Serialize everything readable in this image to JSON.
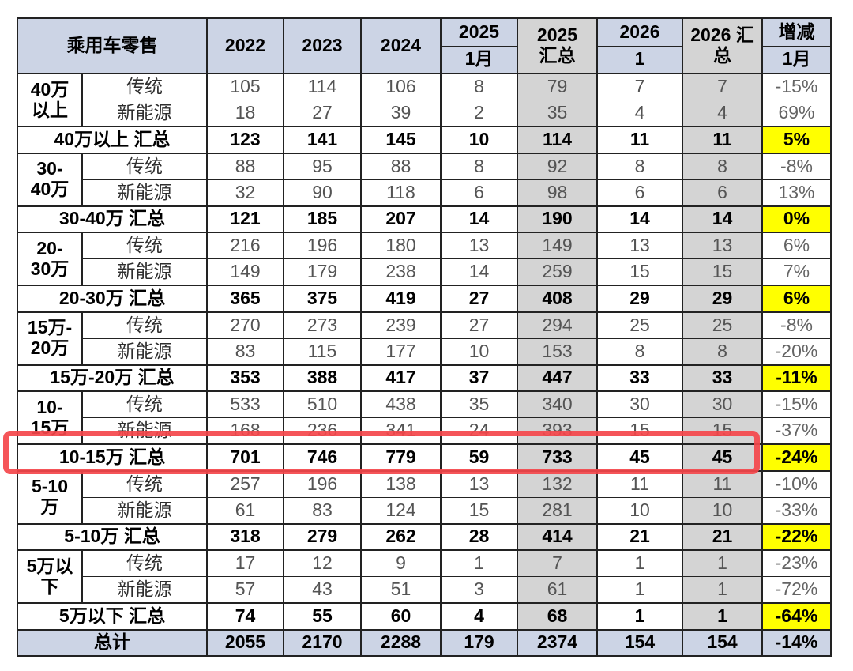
{
  "chart_data": {
    "type": "table",
    "title": "乘用车零售",
    "column_headers": [
      "2022",
      "2023",
      "2024",
      "2025 1月",
      "2025 汇总",
      "2026 1",
      "2026 汇总",
      "增减 1月"
    ],
    "groups": [
      {
        "segment": "40万以上",
        "segment_display": "40万\n以上",
        "rows": [
          {
            "category": "传统",
            "values": [
              105,
              114,
              106,
              8,
              79,
              7,
              7,
              "-15%"
            ]
          },
          {
            "category": "新能源",
            "values": [
              18,
              27,
              39,
              2,
              35,
              4,
              4,
              "69%"
            ]
          }
        ],
        "summary": {
          "label": "40万以上 汇总",
          "values": [
            123,
            141,
            145,
            10,
            114,
            11,
            11,
            "5%"
          ]
        }
      },
      {
        "segment": "30-40万",
        "segment_display": "30-\n40万",
        "rows": [
          {
            "category": "传统",
            "values": [
              88,
              95,
              88,
              8,
              92,
              8,
              8,
              "-8%"
            ]
          },
          {
            "category": "新能源",
            "values": [
              32,
              90,
              118,
              6,
              98,
              6,
              6,
              "13%"
            ]
          }
        ],
        "summary": {
          "label": "30-40万 汇总",
          "values": [
            121,
            185,
            207,
            14,
            190,
            14,
            14,
            "0%"
          ]
        }
      },
      {
        "segment": "20-30万",
        "segment_display": "20-\n30万",
        "rows": [
          {
            "category": "传统",
            "values": [
              216,
              196,
              180,
              13,
              149,
              13,
              13,
              "6%"
            ]
          },
          {
            "category": "新能源",
            "values": [
              149,
              179,
              238,
              14,
              259,
              15,
              15,
              "7%"
            ]
          }
        ],
        "summary": {
          "label": "20-30万 汇总",
          "values": [
            365,
            375,
            419,
            27,
            408,
            29,
            29,
            "6%"
          ]
        }
      },
      {
        "segment": "15万-20万",
        "segment_display": "15万-\n20万",
        "rows": [
          {
            "category": "传统",
            "values": [
              270,
              273,
              239,
              27,
              294,
              25,
              25,
              "-8%"
            ]
          },
          {
            "category": "新能源",
            "values": [
              83,
              115,
              177,
              10,
              153,
              8,
              8,
              "-20%"
            ]
          }
        ],
        "summary": {
          "label": "15万-20万 汇总",
          "values": [
            353,
            388,
            417,
            37,
            447,
            33,
            33,
            "-11%"
          ]
        }
      },
      {
        "segment": "10-15万",
        "segment_display": "10-\n15万",
        "rows": [
          {
            "category": "传统",
            "values": [
              533,
              510,
              438,
              35,
              340,
              30,
              30,
              "-15%"
            ]
          },
          {
            "category": "新能源",
            "values": [
              168,
              236,
              341,
              24,
              393,
              15,
              15,
              "-37%"
            ]
          }
        ],
        "summary": {
          "label": "10-15万 汇总",
          "values": [
            701,
            746,
            779,
            59,
            733,
            45,
            45,
            "-24%"
          ]
        }
      },
      {
        "segment": "5-10万",
        "segment_display": "5-10\n万",
        "rows": [
          {
            "category": "传统",
            "values": [
              257,
              196,
              138,
              13,
              132,
              11,
              11,
              "-10%"
            ]
          },
          {
            "category": "新能源",
            "values": [
              61,
              83,
              124,
              15,
              281,
              10,
              10,
              "-33%"
            ]
          }
        ],
        "summary": {
          "label": "5-10万 汇总",
          "values": [
            318,
            279,
            262,
            28,
            414,
            21,
            21,
            "-22%"
          ]
        }
      },
      {
        "segment": "5万以下",
        "segment_display": "5万以\n下",
        "rows": [
          {
            "category": "传统",
            "values": [
              17,
              12,
              9,
              1,
              7,
              1,
              1,
              "-23%"
            ]
          },
          {
            "category": "新能源",
            "values": [
              57,
              43,
              51,
              3,
              61,
              1,
              1,
              "-72%"
            ]
          }
        ],
        "summary": {
          "label": "5万以下 汇总",
          "values": [
            74,
            55,
            60,
            4,
            68,
            1,
            1,
            "-64%"
          ]
        }
      }
    ],
    "total": {
      "label": "总计",
      "values": [
        2055,
        2170,
        2288,
        179,
        2374,
        154,
        154,
        "-14%"
      ]
    }
  },
  "header": {
    "title_cell": "乘用车零售",
    "y2022": "2022",
    "y2023": "2023",
    "y2024": "2024",
    "c2025_top": "2025",
    "c2025_bottom": "1月",
    "c2025_total_l1": "2025",
    "c2025_total_l2": "汇总",
    "c2026_top": "2026",
    "c2026_bottom": "1",
    "c2026_total_l1": "2026 汇",
    "c2026_total_l2": "总",
    "change_top": "增减",
    "change_bottom": "1月"
  },
  "colors": {
    "header_blue": "#ccd4e5",
    "summary_column_gray": "#d4d4d4",
    "highlight_yellow": "#ffff00",
    "annotation_red": "#f4474b",
    "border_black": "#222222"
  },
  "annotation": {
    "type": "red-highlight-box",
    "target_row": "10-15万 汇总"
  }
}
